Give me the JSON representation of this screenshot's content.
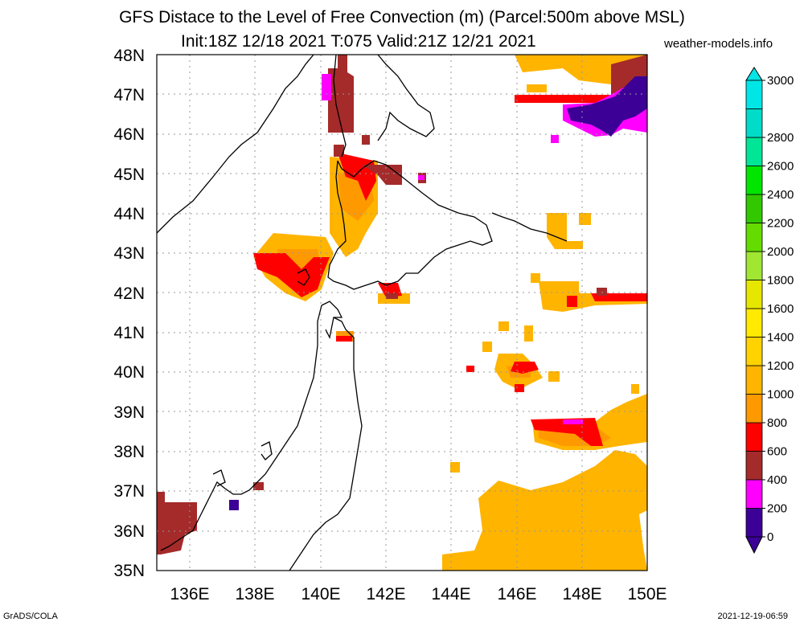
{
  "title_line1": "GFS Distace to the Level of Free Convection (m) (Parcel:500m above MSL)",
  "title_line2": "Init:18Z 12/18 2021 T:075 Valid:21Z 12/21 2021",
  "site": "weather-models.info",
  "footer_left": "GrADS/COLA",
  "footer_right": "2021-12-19-06:59",
  "map": {
    "lon_range": [
      135,
      150
    ],
    "lat_range": [
      35,
      48
    ],
    "lat_labels": [
      "35N",
      "36N",
      "37N",
      "38N",
      "39N",
      "40N",
      "41N",
      "42N",
      "43N",
      "44N",
      "45N",
      "46N",
      "47N",
      "48N"
    ],
    "lon_labels": [
      "136E",
      "138E",
      "140E",
      "142E",
      "144E",
      "146E",
      "148E",
      "150E"
    ]
  },
  "colorbar": {
    "labels": [
      "0",
      "200",
      "400",
      "600",
      "800",
      "1000",
      "1200",
      "1400",
      "1600",
      "1800",
      "2000",
      "2200",
      "2400",
      "2600",
      "2800",
      "3000"
    ],
    "colors": [
      "#3c0096",
      "#ff00ff",
      "#a52a2a",
      "#ff0000",
      "#ff9900",
      "#ffb400",
      "#ffd200",
      "#ffea00",
      "#e6e600",
      "#a0e632",
      "#64dc00",
      "#32c800",
      "#00e600",
      "#00e696",
      "#00dcc8",
      "#00e6e6"
    ]
  },
  "fill_colors": {
    "purple": "#3c0096",
    "magenta": "#ff00ff",
    "brown": "#a52a2a",
    "red": "#ff0000",
    "orange": "#ff9900",
    "gold": "#ffb400",
    "yellow": "#ffd200"
  }
}
